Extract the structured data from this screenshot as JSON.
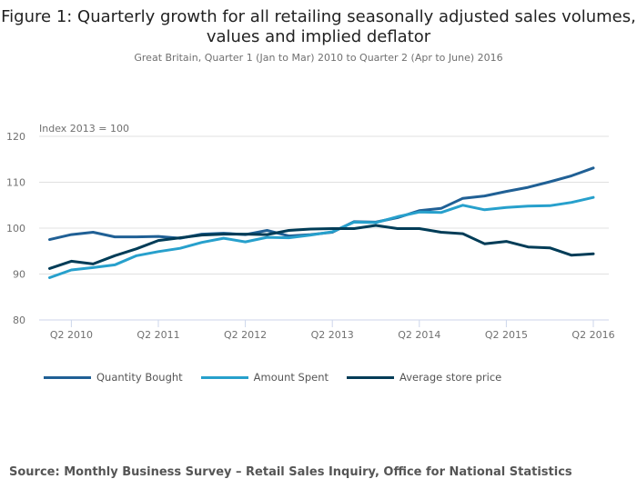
{
  "title": "Figure 1: Quarterly growth for all retailing seasonally adjusted sales volumes, values and implied deflator",
  "subtitle": "Great Britain, Quarter 1 (Jan to Mar) 2010 to Quarter 2 (Apr to June) 2016",
  "source": "Source: Monthly Business Survey – Retail Sales Inquiry, Office for National Statistics",
  "chart_data": {
    "type": "line",
    "title": "Figure 1: Quarterly growth for all retailing seasonally adjusted sales volumes, values and implied deflator",
    "subtitle": "Great Britain, Quarter 1 (Jan to Mar) 2010 to Quarter 2 (Apr to June) 2016",
    "xlabel": "",
    "ylabel": "Index 2013 = 100",
    "ylim": [
      80,
      120
    ],
    "yticks": [
      "80",
      "90",
      "100",
      "110",
      "120"
    ],
    "ytick_values": [
      80,
      90,
      100,
      110,
      120
    ],
    "grid": true,
    "legend_position": "bottom-left",
    "x": [
      "Q1 2010",
      "Q2 2010",
      "Q3 2010",
      "Q4 2010",
      "Q1 2011",
      "Q2 2011",
      "Q3 2011",
      "Q4 2011",
      "Q1 2012",
      "Q2 2012",
      "Q3 2012",
      "Q4 2012",
      "Q1 2013",
      "Q2 2013",
      "Q3 2013",
      "Q4 2013",
      "Q1 2014",
      "Q2 2014",
      "Q3 2014",
      "Q4 2014",
      "Q1 2015",
      "Q2 2015",
      "Q3 2015",
      "Q4 2015",
      "Q1 2016",
      "Q2 2016"
    ],
    "xtick_labels": [
      "Q2 2010",
      "Q2 2011",
      "Q2 2012",
      "Q2 2013",
      "Q2 2014",
      "Q2 2015",
      "Q2 2016"
    ],
    "xtick_indices": [
      1,
      5,
      9,
      13,
      17,
      21,
      25
    ],
    "series": [
      {
        "name": "Quantity Bought",
        "color": "#206095",
        "values": [
          97.5,
          98.6,
          99.1,
          98.1,
          98.1,
          98.2,
          97.8,
          98.7,
          98.9,
          98.6,
          99.5,
          98.3,
          98.6,
          99.1,
          101.4,
          101.3,
          102.3,
          103.8,
          104.3,
          106.5,
          107.0,
          108.0,
          108.9,
          110.1,
          111.4,
          113.1
        ]
      },
      {
        "name": "Amount Spent",
        "color": "#27a0cc",
        "values": [
          89.2,
          90.9,
          91.4,
          92.0,
          94.0,
          94.9,
          95.6,
          96.9,
          97.8,
          97.0,
          98.0,
          97.9,
          98.5,
          99.2,
          101.3,
          101.2,
          102.5,
          103.5,
          103.4,
          105.0,
          104.0,
          104.5,
          104.8,
          104.9,
          105.6,
          106.7
        ]
      },
      {
        "name": "Average store price",
        "color": "#003c57",
        "values": [
          91.2,
          92.8,
          92.2,
          94.0,
          95.5,
          97.3,
          97.9,
          98.5,
          98.7,
          98.7,
          98.6,
          99.5,
          99.8,
          99.9,
          99.9,
          100.6,
          99.9,
          99.9,
          99.1,
          98.8,
          96.6,
          97.1,
          95.9,
          95.7,
          94.1,
          94.4
        ]
      }
    ]
  }
}
